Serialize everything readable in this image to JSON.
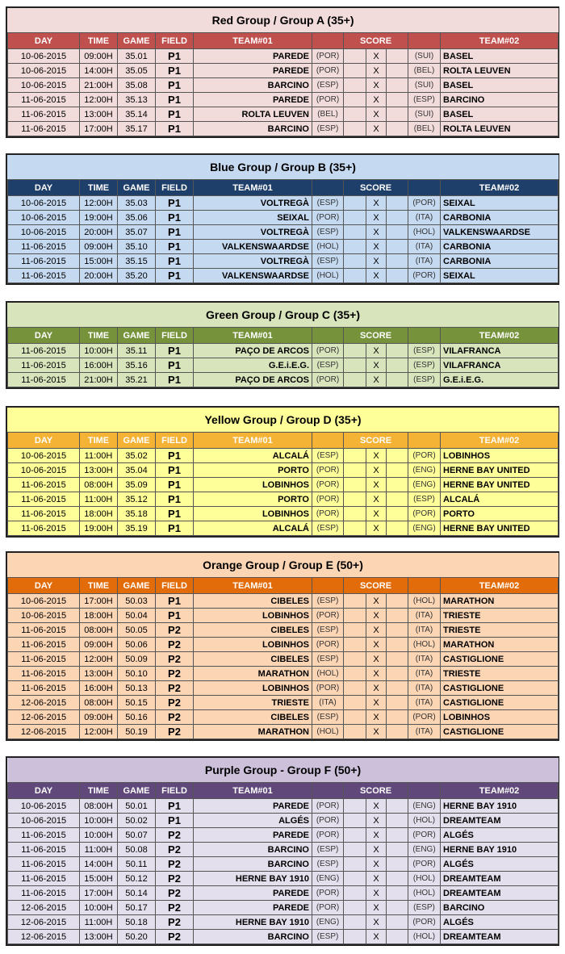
{
  "headers": {
    "day": "DAY",
    "time": "TIME",
    "game": "GAME",
    "field": "FIELD",
    "team1": "TEAM#01",
    "score": "SCORE",
    "team2": "TEAM#02",
    "x": "X"
  },
  "groups": [
    {
      "title": "Red Group / Group A (35+)",
      "colors": {
        "title": "#f2dcdb",
        "header": "#c0504d",
        "row": "#f2dcdb"
      },
      "rows": [
        [
          "10-06-2015",
          "09:00H",
          "35.01",
          "P1",
          "PAREDE",
          "(POR)",
          "(SUI)",
          "BASEL"
        ],
        [
          "10-06-2015",
          "14:00H",
          "35.05",
          "P1",
          "PAREDE",
          "(POR)",
          "(BEL)",
          "ROLTA LEUVEN"
        ],
        [
          "10-06-2015",
          "21:00H",
          "35.08",
          "P1",
          "BARCINO",
          "(ESP)",
          "(SUI)",
          "BASEL"
        ],
        [
          "11-06-2015",
          "12:00H",
          "35.13",
          "P1",
          "PAREDE",
          "(POR)",
          "(ESP)",
          "BARCINO"
        ],
        [
          "11-06-2015",
          "13:00H",
          "35.14",
          "P1",
          "ROLTA LEUVEN",
          "(BEL)",
          "(SUI)",
          "BASEL"
        ],
        [
          "11-06-2015",
          "17:00H",
          "35.17",
          "P1",
          "BARCINO",
          "(ESP)",
          "(BEL)",
          "ROLTA LEUVEN"
        ]
      ]
    },
    {
      "title": "Blue Group / Group B (35+)",
      "colors": {
        "title": "#c5d9f1",
        "header": "#1f3f6b",
        "row": "#c5d9f1"
      },
      "rows": [
        [
          "10-06-2015",
          "12:00H",
          "35.03",
          "P1",
          "VOLTREGÀ",
          "(ESP)",
          "(POR)",
          "SEIXAL"
        ],
        [
          "10-06-2015",
          "19:00H",
          "35.06",
          "P1",
          "SEIXAL",
          "(POR)",
          "(ITA)",
          "CARBONIA"
        ],
        [
          "10-06-2015",
          "20:00H",
          "35.07",
          "P1",
          "VOLTREGÀ",
          "(ESP)",
          "(HOL)",
          "VALKENSWAARDSE"
        ],
        [
          "11-06-2015",
          "09:00H",
          "35.10",
          "P1",
          "VALKENSWAARDSE",
          "(HOL)",
          "(ITA)",
          "CARBONIA"
        ],
        [
          "11-06-2015",
          "15:00H",
          "35.15",
          "P1",
          "VOLTREGÀ",
          "(ESP)",
          "(ITA)",
          "CARBONIA"
        ],
        [
          "11-06-2015",
          "20:00H",
          "35.20",
          "P1",
          "VALKENSWAARDSE",
          "(HOL)",
          "(POR)",
          "SEIXAL"
        ]
      ]
    },
    {
      "title": "Green Group / Group C (35+)",
      "colors": {
        "title": "#d8e4bc",
        "header": "#76933c",
        "row": "#d8e4bc"
      },
      "rows": [
        [
          "11-06-2015",
          "10:00H",
          "35.11",
          "P1",
          "PAÇO DE ARCOS",
          "(POR)",
          "(ESP)",
          "VILAFRANCA"
        ],
        [
          "11-06-2015",
          "16:00H",
          "35.16",
          "P1",
          "G.E.i.E.G.",
          "(ESP)",
          "(ESP)",
          "VILAFRANCA"
        ],
        [
          "11-06-2015",
          "21:00H",
          "35.21",
          "P1",
          "PAÇO DE ARCOS",
          "(POR)",
          "(ESP)",
          "G.E.i.E.G."
        ]
      ]
    },
    {
      "title": "Yellow Group / Group D (35+)",
      "colors": {
        "title": "#ffff99",
        "header": "#f5b335",
        "row": "#ffff99"
      },
      "rows": [
        [
          "10-06-2015",
          "11:00H",
          "35.02",
          "P1",
          "ALCALÁ",
          "(ESP)",
          "(POR)",
          "LOBINHOS"
        ],
        [
          "10-06-2015",
          "13:00H",
          "35.04",
          "P1",
          "PORTO",
          "(POR)",
          "(ENG)",
          "HERNE BAY UNITED"
        ],
        [
          "11-06-2015",
          "08:00H",
          "35.09",
          "P1",
          "LOBINHOS",
          "(POR)",
          "(ENG)",
          "HERNE BAY UNITED"
        ],
        [
          "11-06-2015",
          "11:00H",
          "35.12",
          "P1",
          "PORTO",
          "(POR)",
          "(ESP)",
          "ALCALÁ"
        ],
        [
          "11-06-2015",
          "18:00H",
          "35.18",
          "P1",
          "LOBINHOS",
          "(POR)",
          "(POR)",
          "PORTO"
        ],
        [
          "11-06-2015",
          "19:00H",
          "35.19",
          "P1",
          "ALCALÁ",
          "(ESP)",
          "(ENG)",
          "HERNE BAY UNITED"
        ]
      ]
    },
    {
      "title": "Orange Group / Group E (50+)",
      "colors": {
        "title": "#fcd5b4",
        "header": "#e26b0a",
        "row": "#fcd5b4"
      },
      "rows": [
        [
          "10-06-2015",
          "17:00H",
          "50.03",
          "P1",
          "CIBELES",
          "(ESP)",
          "(HOL)",
          "MARATHON"
        ],
        [
          "10-06-2015",
          "18:00H",
          "50.04",
          "P1",
          "LOBINHOS",
          "(POR)",
          "(ITA)",
          "TRIESTE"
        ],
        [
          "11-06-2015",
          "08:00H",
          "50.05",
          "P2",
          "CIBELES",
          "(ESP)",
          "(ITA)",
          "TRIESTE"
        ],
        [
          "11-06-2015",
          "09:00H",
          "50.06",
          "P2",
          "LOBINHOS",
          "(POR)",
          "(HOL)",
          "MARATHON"
        ],
        [
          "11-06-2015",
          "12:00H",
          "50.09",
          "P2",
          "CIBELES",
          "(ESP)",
          "(ITA)",
          "CASTIGLIONE"
        ],
        [
          "11-06-2015",
          "13:00H",
          "50.10",
          "P2",
          "MARATHON",
          "(HOL)",
          "(ITA)",
          "TRIESTE"
        ],
        [
          "11-06-2015",
          "16:00H",
          "50.13",
          "P2",
          "LOBINHOS",
          "(POR)",
          "(ITA)",
          "CASTIGLIONE"
        ],
        [
          "12-06-2015",
          "08:00H",
          "50.15",
          "P2",
          "TRIESTE",
          "(ITA)",
          "(ITA)",
          "CASTIGLIONE"
        ],
        [
          "12-06-2015",
          "09:00H",
          "50.16",
          "P2",
          "CIBELES",
          "(ESP)",
          "(POR)",
          "LOBINHOS"
        ],
        [
          "12-06-2015",
          "12:00H",
          "50.19",
          "P2",
          "MARATHON",
          "(HOL)",
          "(ITA)",
          "CASTIGLIONE"
        ]
      ]
    },
    {
      "title": "Purple Group - Group F (50+)",
      "colors": {
        "title": "#ccc0da",
        "header": "#60497a",
        "row": "#e4dfec"
      },
      "rows": [
        [
          "10-06-2015",
          "08:00H",
          "50.01",
          "P1",
          "PAREDE",
          "(POR)",
          "(ENG)",
          "HERNE BAY 1910"
        ],
        [
          "10-06-2015",
          "10:00H",
          "50.02",
          "P1",
          "ALGÉS",
          "(POR)",
          "(HOL)",
          "DREAMTEAM"
        ],
        [
          "11-06-2015",
          "10:00H",
          "50.07",
          "P2",
          "PAREDE",
          "(POR)",
          "(POR)",
          "ALGÉS"
        ],
        [
          "11-06-2015",
          "11:00H",
          "50.08",
          "P2",
          "BARCINO",
          "(ESP)",
          "(ENG)",
          "HERNE BAY 1910"
        ],
        [
          "11-06-2015",
          "14:00H",
          "50.11",
          "P2",
          "BARCINO",
          "(ESP)",
          "(POR)",
          "ALGÉS"
        ],
        [
          "11-06-2015",
          "15:00H",
          "50.12",
          "P2",
          "HERNE BAY 1910",
          "(ENG)",
          "(HOL)",
          "DREAMTEAM"
        ],
        [
          "11-06-2015",
          "17:00H",
          "50.14",
          "P2",
          "PAREDE",
          "(POR)",
          "(HOL)",
          "DREAMTEAM"
        ],
        [
          "12-06-2015",
          "10:00H",
          "50.17",
          "P2",
          "PAREDE",
          "(POR)",
          "(ESP)",
          "BARCINO"
        ],
        [
          "12-06-2015",
          "11:00H",
          "50.18",
          "P2",
          "HERNE BAY 1910",
          "(ENG)",
          "(POR)",
          "ALGÉS"
        ],
        [
          "12-06-2015",
          "13:00H",
          "50.20",
          "P2",
          "BARCINO",
          "(ESP)",
          "(HOL)",
          "DREAMTEAM"
        ]
      ]
    }
  ]
}
